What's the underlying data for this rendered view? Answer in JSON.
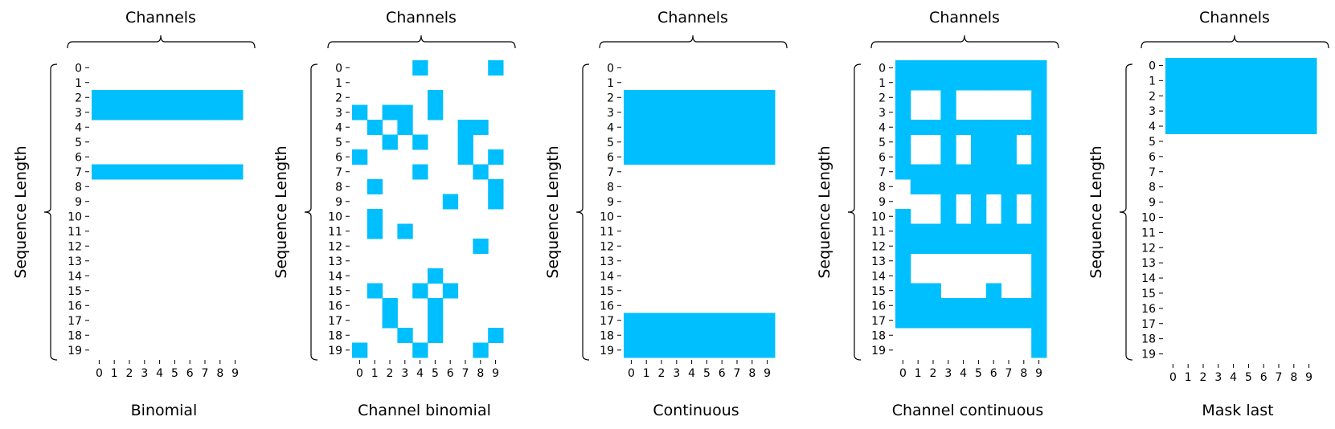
{
  "chart_data": [
    {
      "type": "heatmap",
      "title": "Binomial",
      "xlabel": "Channels",
      "ylabel": "Sequence Length",
      "x_ticks": [
        "0",
        "1",
        "2",
        "3",
        "4",
        "5",
        "6",
        "7",
        "8",
        "9"
      ],
      "y_ticks": [
        "0",
        "1",
        "2",
        "3",
        "4",
        "5",
        "6",
        "7",
        "8",
        "9",
        "10",
        "11",
        "12",
        "13",
        "14",
        "15",
        "16",
        "17",
        "18",
        "19"
      ],
      "fill_color": "#00bfff",
      "masked_cells": [
        [
          2,
          0
        ],
        [
          2,
          1
        ],
        [
          2,
          2
        ],
        [
          2,
          3
        ],
        [
          2,
          4
        ],
        [
          2,
          5
        ],
        [
          2,
          6
        ],
        [
          2,
          7
        ],
        [
          2,
          8
        ],
        [
          2,
          9
        ],
        [
          3,
          0
        ],
        [
          3,
          1
        ],
        [
          3,
          2
        ],
        [
          3,
          3
        ],
        [
          3,
          4
        ],
        [
          3,
          5
        ],
        [
          3,
          6
        ],
        [
          3,
          7
        ],
        [
          3,
          8
        ],
        [
          3,
          9
        ],
        [
          7,
          0
        ],
        [
          7,
          1
        ],
        [
          7,
          2
        ],
        [
          7,
          3
        ],
        [
          7,
          4
        ],
        [
          7,
          5
        ],
        [
          7,
          6
        ],
        [
          7,
          7
        ],
        [
          7,
          8
        ],
        [
          7,
          9
        ]
      ]
    },
    {
      "type": "heatmap",
      "title": "Channel binomial",
      "xlabel": "Channels",
      "ylabel": "Sequence Length",
      "x_ticks": [
        "0",
        "1",
        "2",
        "3",
        "4",
        "5",
        "6",
        "7",
        "8",
        "9"
      ],
      "y_ticks": [
        "0",
        "1",
        "2",
        "3",
        "4",
        "5",
        "6",
        "7",
        "8",
        "9",
        "10",
        "11",
        "12",
        "13",
        "14",
        "15",
        "16",
        "17",
        "18",
        "19"
      ],
      "fill_color": "#00bfff",
      "masked_cells": [
        [
          0,
          4
        ],
        [
          0,
          9
        ],
        [
          2,
          5
        ],
        [
          3,
          0
        ],
        [
          3,
          2
        ],
        [
          3,
          3
        ],
        [
          3,
          5
        ],
        [
          4,
          1
        ],
        [
          4,
          3
        ],
        [
          4,
          7
        ],
        [
          4,
          8
        ],
        [
          5,
          2
        ],
        [
          5,
          4
        ],
        [
          5,
          7
        ],
        [
          6,
          0
        ],
        [
          6,
          7
        ],
        [
          6,
          9
        ],
        [
          7,
          4
        ],
        [
          7,
          8
        ],
        [
          8,
          1
        ],
        [
          8,
          9
        ],
        [
          9,
          6
        ],
        [
          9,
          9
        ],
        [
          10,
          1
        ],
        [
          11,
          1
        ],
        [
          11,
          3
        ],
        [
          12,
          8
        ],
        [
          14,
          5
        ],
        [
          15,
          1
        ],
        [
          15,
          4
        ],
        [
          15,
          6
        ],
        [
          16,
          2
        ],
        [
          16,
          5
        ],
        [
          17,
          2
        ],
        [
          17,
          5
        ],
        [
          18,
          3
        ],
        [
          18,
          5
        ],
        [
          18,
          9
        ],
        [
          19,
          0
        ],
        [
          19,
          4
        ],
        [
          19,
          8
        ]
      ]
    },
    {
      "type": "heatmap",
      "title": "Continuous",
      "xlabel": "Channels",
      "ylabel": "Sequence Length",
      "x_ticks": [
        "0",
        "1",
        "2",
        "3",
        "4",
        "5",
        "6",
        "7",
        "8",
        "9"
      ],
      "y_ticks": [
        "0",
        "1",
        "2",
        "3",
        "4",
        "5",
        "6",
        "7",
        "8",
        "9",
        "10",
        "11",
        "12",
        "13",
        "14",
        "15",
        "16",
        "17",
        "18",
        "19"
      ],
      "fill_color": "#00bfff",
      "masked_rows": [
        2,
        3,
        4,
        5,
        6,
        17,
        18,
        19
      ]
    },
    {
      "type": "heatmap",
      "title": "Channel continuous",
      "xlabel": "Channels",
      "ylabel": "Sequence Length",
      "x_ticks": [
        "0",
        "1",
        "2",
        "3",
        "4",
        "5",
        "6",
        "7",
        "8",
        "9"
      ],
      "y_ticks": [
        "0",
        "1",
        "2",
        "3",
        "4",
        "5",
        "6",
        "7",
        "8",
        "9",
        "10",
        "11",
        "12",
        "13",
        "14",
        "15",
        "16",
        "17",
        "18",
        "19"
      ],
      "fill_color": "#00bfff",
      "column_masked_rows": [
        [
          0,
          1,
          2,
          3,
          4,
          5,
          6,
          7,
          10,
          11,
          12,
          13,
          14,
          15,
          16,
          17
        ],
        [
          0,
          1,
          4,
          7,
          8,
          11,
          12,
          15,
          16,
          17
        ],
        [
          0,
          1,
          4,
          7,
          8,
          11,
          12,
          15,
          16,
          17
        ],
        [
          0,
          1,
          2,
          3,
          4,
          5,
          6,
          7,
          8,
          9,
          10,
          11,
          12,
          16,
          17
        ],
        [
          0,
          1,
          4,
          7,
          8,
          11,
          12,
          16,
          17
        ],
        [
          0,
          1,
          4,
          5,
          6,
          7,
          8,
          9,
          10,
          11,
          12,
          16,
          17
        ],
        [
          0,
          1,
          4,
          5,
          6,
          7,
          8,
          11,
          12,
          15,
          16,
          17
        ],
        [
          0,
          1,
          4,
          5,
          6,
          7,
          8,
          9,
          10,
          11,
          12,
          16,
          17
        ],
        [
          0,
          1,
          4,
          7,
          8,
          11,
          12,
          16,
          17
        ],
        [
          0,
          1,
          2,
          3,
          4,
          5,
          6,
          7,
          8,
          9,
          10,
          11,
          12,
          13,
          14,
          15,
          16,
          17,
          18,
          19
        ]
      ]
    },
    {
      "type": "heatmap",
      "title": "Mask last",
      "xlabel": "Channels",
      "ylabel": "Sequence Length",
      "x_ticks": [
        "0",
        "1",
        "2",
        "3",
        "4",
        "5",
        "6",
        "7",
        "8",
        "9"
      ],
      "y_ticks": [
        "0",
        "1",
        "2",
        "3",
        "4",
        "5",
        "6",
        "7",
        "8",
        "9",
        "10",
        "11",
        "12",
        "13",
        "14",
        "15",
        "16",
        "17",
        "18",
        "19"
      ],
      "fill_color": "#00bfff",
      "masked_rows": [
        0,
        1,
        2,
        3,
        4
      ]
    }
  ]
}
